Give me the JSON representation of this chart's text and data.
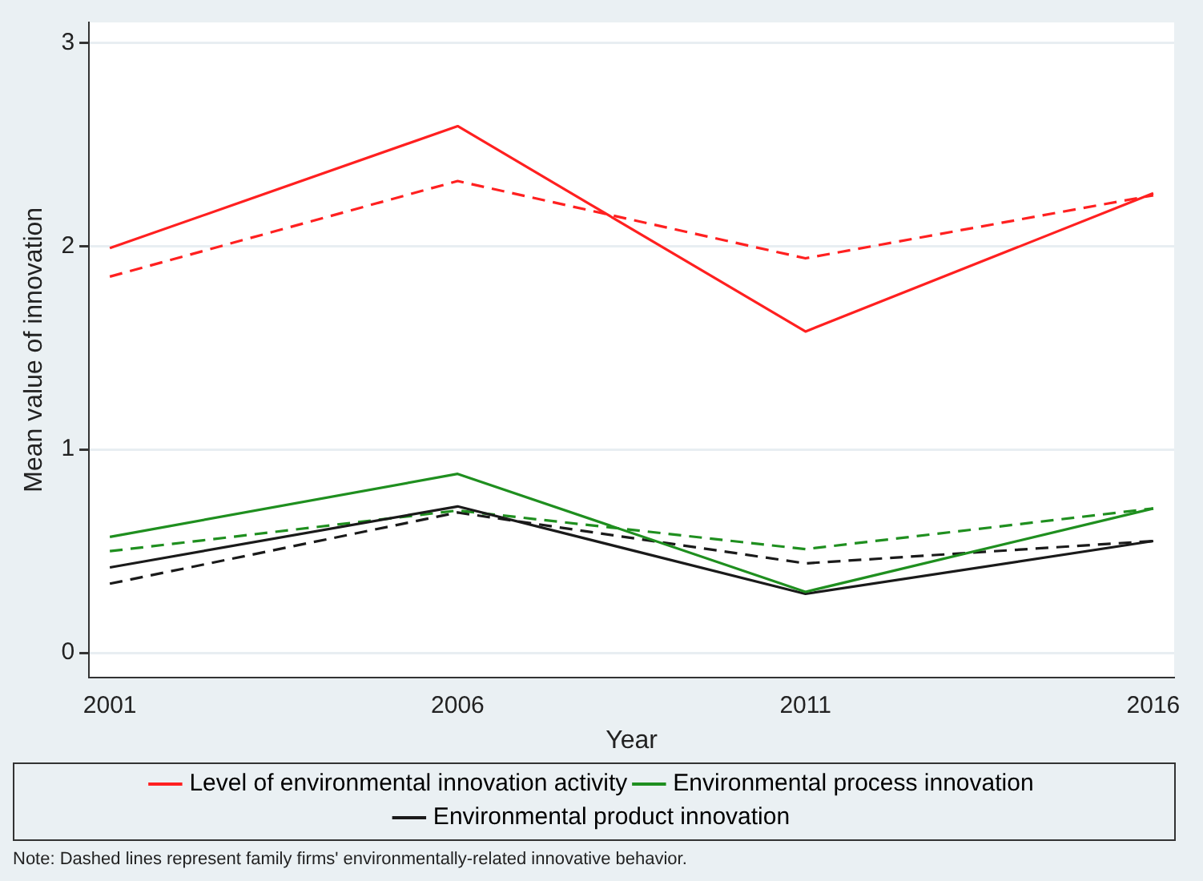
{
  "chart_data": {
    "type": "line",
    "xlabel": "Year",
    "ylabel": "Mean value of innovation",
    "x": [
      2001,
      2006,
      2011,
      2016
    ],
    "xlim": [
      2000.7,
      2016.3
    ],
    "xticks": [
      2001,
      2006,
      2011,
      2016
    ],
    "ylim": [
      -0.12,
      3.1
    ],
    "yticks": [
      0,
      1,
      2,
      3
    ],
    "grid": "y",
    "legend": "bottom",
    "marker": "none",
    "line_style": "solid",
    "series": [
      {
        "name": "Level of environmental innovation activity",
        "color": "#ff2020",
        "values": [
          1.99,
          2.59,
          1.58,
          2.26
        ]
      },
      {
        "name": "Environmental process innovation",
        "color": "#1f8f1f",
        "values": [
          0.57,
          0.88,
          0.3,
          0.71
        ]
      },
      {
        "name": "Environmental product innovation",
        "color": "#1a1a1a",
        "values": [
          0.42,
          0.72,
          0.29,
          0.55
        ]
      },
      {
        "color": "#ff2020",
        "line_style": "dashed",
        "values": [
          1.85,
          2.32,
          1.94,
          2.25
        ]
      },
      {
        "color": "#1f8f1f",
        "line_style": "dashed",
        "values": [
          0.5,
          0.7,
          0.51,
          0.71
        ]
      },
      {
        "color": "#1a1a1a",
        "line_style": "dashed",
        "values": [
          0.34,
          0.69,
          0.44,
          0.55
        ]
      }
    ],
    "annotations": [
      "Note: Dashed lines represent family firms' environmentally-related innovative behavior."
    ]
  }
}
